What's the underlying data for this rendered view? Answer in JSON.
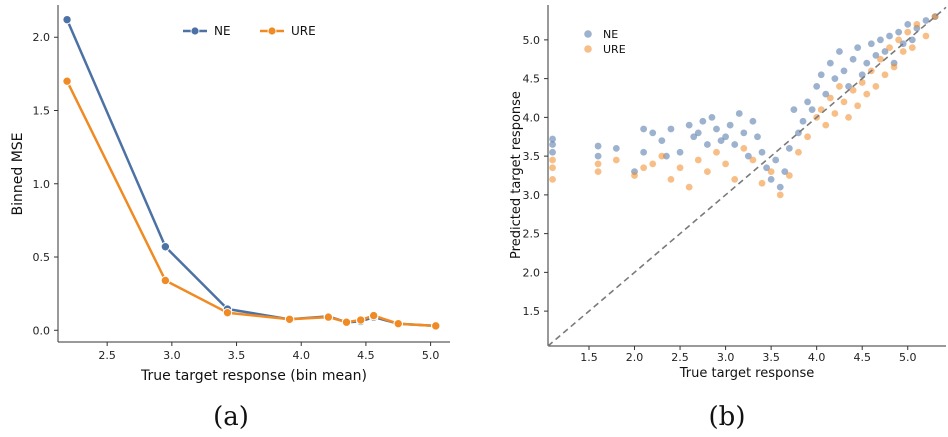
{
  "colors": {
    "ne": "#4c72a5",
    "ure": "#f08a24",
    "diag": "#7a7a7a",
    "axis": "#333333"
  },
  "chart_data": [
    {
      "type": "line",
      "caption": "(a)",
      "xlabel": "True target response (bin mean)",
      "ylabel": "Binned MSE",
      "xlim": [
        2.12,
        5.15
      ],
      "ylim": [
        -0.08,
        2.22
      ],
      "xticks": [
        "2.5",
        "3.0",
        "3.5",
        "4.0",
        "4.5",
        "5.0"
      ],
      "yticks": [
        "0.0",
        "0.5",
        "1.0",
        "1.5",
        "2.0"
      ],
      "legend": "top-center",
      "series": [
        {
          "name": "NE",
          "x": [
            2.19,
            2.95,
            3.43,
            3.91,
            4.21,
            4.35,
            4.46,
            4.56,
            4.75,
            5.04
          ],
          "y": [
            2.12,
            0.57,
            0.145,
            0.075,
            0.095,
            0.055,
            0.06,
            0.09,
            0.045,
            0.03
          ]
        },
        {
          "name": "URE",
          "x": [
            2.19,
            2.95,
            3.43,
            3.91,
            4.21,
            4.35,
            4.46,
            4.56,
            4.75,
            5.04
          ],
          "y": [
            1.7,
            0.34,
            0.12,
            0.075,
            0.09,
            0.055,
            0.07,
            0.1,
            0.045,
            0.03
          ]
        }
      ]
    },
    {
      "type": "scatter",
      "caption": "(b)",
      "xlabel": "True target response",
      "ylabel": "Predicted target response",
      "xlim": [
        1.05,
        5.42
      ],
      "ylim": [
        1.05,
        5.45
      ],
      "xticks": [
        "1.5",
        "2.0",
        "2.5",
        "3.0",
        "3.5",
        "4.0",
        "4.5",
        "5.0"
      ],
      "yticks": [
        "1.5",
        "2.0",
        "2.5",
        "3.0",
        "3.5",
        "4.0",
        "4.5",
        "5.0"
      ],
      "legend": "top-left",
      "diagonal": "y = x (dashed)",
      "series": [
        {
          "name": "NE",
          "points": [
            [
              1.1,
              3.72
            ],
            [
              1.1,
              3.65
            ],
            [
              1.1,
              3.55
            ],
            [
              1.6,
              3.63
            ],
            [
              1.6,
              3.5
            ],
            [
              1.8,
              3.6
            ],
            [
              2.0,
              3.3
            ],
            [
              2.1,
              3.85
            ],
            [
              2.1,
              3.55
            ],
            [
              2.2,
              3.8
            ],
            [
              2.3,
              3.7
            ],
            [
              2.35,
              3.5
            ],
            [
              2.4,
              3.85
            ],
            [
              2.5,
              3.55
            ],
            [
              2.6,
              3.9
            ],
            [
              2.65,
              3.75
            ],
            [
              2.7,
              3.8
            ],
            [
              2.75,
              3.95
            ],
            [
              2.8,
              3.65
            ],
            [
              2.85,
              4.0
            ],
            [
              2.9,
              3.85
            ],
            [
              2.95,
              3.7
            ],
            [
              3.0,
              3.75
            ],
            [
              3.05,
              3.9
            ],
            [
              3.1,
              3.65
            ],
            [
              3.15,
              4.05
            ],
            [
              3.2,
              3.8
            ],
            [
              3.25,
              3.5
            ],
            [
              3.3,
              3.95
            ],
            [
              3.35,
              3.75
            ],
            [
              3.4,
              3.55
            ],
            [
              3.45,
              3.35
            ],
            [
              3.5,
              3.2
            ],
            [
              3.55,
              3.45
            ],
            [
              3.6,
              3.1
            ],
            [
              3.65,
              3.3
            ],
            [
              3.7,
              3.6
            ],
            [
              3.75,
              4.1
            ],
            [
              3.8,
              3.8
            ],
            [
              3.85,
              3.95
            ],
            [
              3.9,
              4.2
            ],
            [
              3.95,
              4.1
            ],
            [
              4.0,
              4.4
            ],
            [
              4.05,
              4.55
            ],
            [
              4.1,
              4.3
            ],
            [
              4.15,
              4.7
            ],
            [
              4.2,
              4.5
            ],
            [
              4.25,
              4.85
            ],
            [
              4.3,
              4.6
            ],
            [
              4.35,
              4.4
            ],
            [
              4.4,
              4.75
            ],
            [
              4.45,
              4.9
            ],
            [
              4.5,
              4.55
            ],
            [
              4.55,
              4.7
            ],
            [
              4.6,
              4.95
            ],
            [
              4.65,
              4.8
            ],
            [
              4.7,
              5.0
            ],
            [
              4.75,
              4.85
            ],
            [
              4.8,
              5.05
            ],
            [
              4.85,
              4.7
            ],
            [
              4.9,
              5.1
            ],
            [
              4.95,
              4.95
            ],
            [
              5.0,
              5.2
            ],
            [
              5.05,
              5.0
            ],
            [
              5.1,
              5.15
            ],
            [
              5.2,
              5.25
            ],
            [
              5.3,
              5.3
            ]
          ]
        },
        {
          "name": "URE",
          "points": [
            [
              1.1,
              3.35
            ],
            [
              1.1,
              3.2
            ],
            [
              1.1,
              3.45
            ],
            [
              1.6,
              3.4
            ],
            [
              1.6,
              3.3
            ],
            [
              1.8,
              3.45
            ],
            [
              2.0,
              3.25
            ],
            [
              2.1,
              3.35
            ],
            [
              2.2,
              3.4
            ],
            [
              2.3,
              3.5
            ],
            [
              2.4,
              3.2
            ],
            [
              2.5,
              3.35
            ],
            [
              2.6,
              3.1
            ],
            [
              2.7,
              3.45
            ],
            [
              2.8,
              3.3
            ],
            [
              2.9,
              3.55
            ],
            [
              3.0,
              3.4
            ],
            [
              3.1,
              3.2
            ],
            [
              3.2,
              3.6
            ],
            [
              3.3,
              3.45
            ],
            [
              3.4,
              3.15
            ],
            [
              3.5,
              3.3
            ],
            [
              3.6,
              3.0
            ],
            [
              3.7,
              3.25
            ],
            [
              3.8,
              3.55
            ],
            [
              3.9,
              3.75
            ],
            [
              4.0,
              4.0
            ],
            [
              4.05,
              4.1
            ],
            [
              4.1,
              3.9
            ],
            [
              4.15,
              4.25
            ],
            [
              4.2,
              4.05
            ],
            [
              4.25,
              4.4
            ],
            [
              4.3,
              4.2
            ],
            [
              4.35,
              4.0
            ],
            [
              4.4,
              4.35
            ],
            [
              4.45,
              4.15
            ],
            [
              4.5,
              4.45
            ],
            [
              4.55,
              4.3
            ],
            [
              4.6,
              4.6
            ],
            [
              4.65,
              4.4
            ],
            [
              4.7,
              4.75
            ],
            [
              4.75,
              4.55
            ],
            [
              4.8,
              4.9
            ],
            [
              4.85,
              4.65
            ],
            [
              4.9,
              5.0
            ],
            [
              4.95,
              4.85
            ],
            [
              5.0,
              5.1
            ],
            [
              5.05,
              4.9
            ],
            [
              5.1,
              5.2
            ],
            [
              5.2,
              5.05
            ],
            [
              5.3,
              5.3
            ]
          ]
        }
      ]
    }
  ]
}
